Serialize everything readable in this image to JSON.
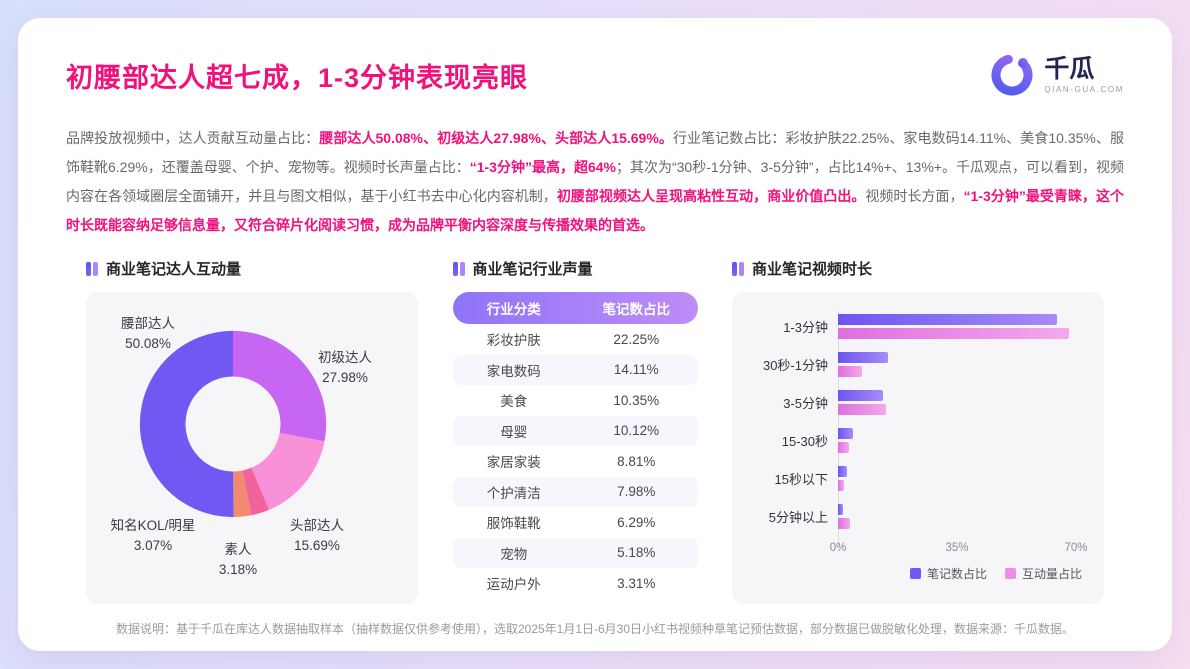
{
  "header": {
    "title": "初腰部达人超七成，1-3分钟表现亮眼",
    "brand_name": "千瓜",
    "brand_domain": "QIAN-GUA.COM"
  },
  "intro": {
    "segments": [
      {
        "t": "品牌投放视频中，达人贡献互动量占比：",
        "hl": false
      },
      {
        "t": "腰部达人50.08%、初级达人27.98%、头部达人15.69%。",
        "hl": true
      },
      {
        "t": "行业笔记数占比：彩妆护肤22.25%、家电数码14.11%、美食10.35%、服饰鞋靴6.29%，还覆盖母婴、个护、宠物等。视频时长声量占比：",
        "hl": false
      },
      {
        "t": "“1-3分钟”最高，超64%",
        "hl": true
      },
      {
        "t": "；其次为“30秒-1分钟、3-5分钟”，占比14%+、13%+。千瓜观点，可以看到，视频内容在各领域圈层全面铺开，并且与图文相似，基于小红书去中心化内容机制，",
        "hl": false
      },
      {
        "t": "初腰部视频达人呈现高粘性互动，商业价值凸出。",
        "hl": true
      },
      {
        "t": "视频时长方面，",
        "hl": false
      },
      {
        "t": "“1-3分钟”最受青睐，这个时长既能容纳足够信息量，又符合碎片化阅读习惯，成为品牌平衡内容深度与传播效果的首选。",
        "hl": true
      }
    ]
  },
  "chart_data": [
    {
      "type": "pie",
      "donut": true,
      "title": "商业笔记达人互动量",
      "labels": [
        "腰部达人",
        "初级达人",
        "头部达人",
        "素人",
        "知名KOL/明星"
      ],
      "values": [
        50.08,
        27.98,
        15.69,
        3.18,
        3.07
      ],
      "colors": [
        "#7158F2",
        "#C766F2",
        "#F991D9",
        "#F2639B",
        "#F28A70"
      ],
      "draw_order": [
        1,
        2,
        3,
        4,
        0
      ]
    },
    {
      "type": "table",
      "title": "商业笔记行业声量",
      "columns": [
        "行业分类",
        "笔记数占比"
      ],
      "rows": [
        [
          "彩妆护肤",
          "22.25%"
        ],
        [
          "家电数码",
          "14.11%"
        ],
        [
          "美食",
          "10.35%"
        ],
        [
          "母婴",
          "10.12%"
        ],
        [
          "家居家装",
          "8.81%"
        ],
        [
          "个护清洁",
          "7.98%"
        ],
        [
          "服饰鞋靴",
          "6.29%"
        ],
        [
          "宠物",
          "5.18%"
        ],
        [
          "运动户外",
          "3.31%"
        ]
      ]
    },
    {
      "type": "bar",
      "orientation": "horizontal",
      "title": "商业笔记视频时长",
      "categories": [
        "1-3分钟",
        "30秒-1分钟",
        "3-5分钟",
        "15-30秒",
        "15秒以下",
        "5分钟以上"
      ],
      "series": [
        {
          "name": "笔记数占比",
          "color": "#6C5BF0",
          "gradient": [
            "#6E54F0",
            "#A78BF8"
          ],
          "values": [
            64.3,
            14.6,
            13.2,
            4.3,
            2.5,
            1.4
          ]
        },
        {
          "name": "互动量占比",
          "color": "#EE8EE4",
          "gradient": [
            "#DE6FE0",
            "#F4A9EC"
          ],
          "values": [
            67.8,
            7.0,
            14.2,
            3.1,
            1.9,
            3.6
          ]
        }
      ],
      "xlim": [
        0,
        70
      ],
      "xticks": [
        "0%",
        "35%",
        "70%"
      ],
      "legend_position": "bottom-right"
    }
  ],
  "footer": {
    "text": "数据说明：基于千瓜在库达人数据抽取样本（抽样数据仅供参考使用），选取2025年1月1日-6月30日小红书视频种草笔记预估数据，部分数据已做脱敏化处理，数据来源：千瓜数据。"
  }
}
